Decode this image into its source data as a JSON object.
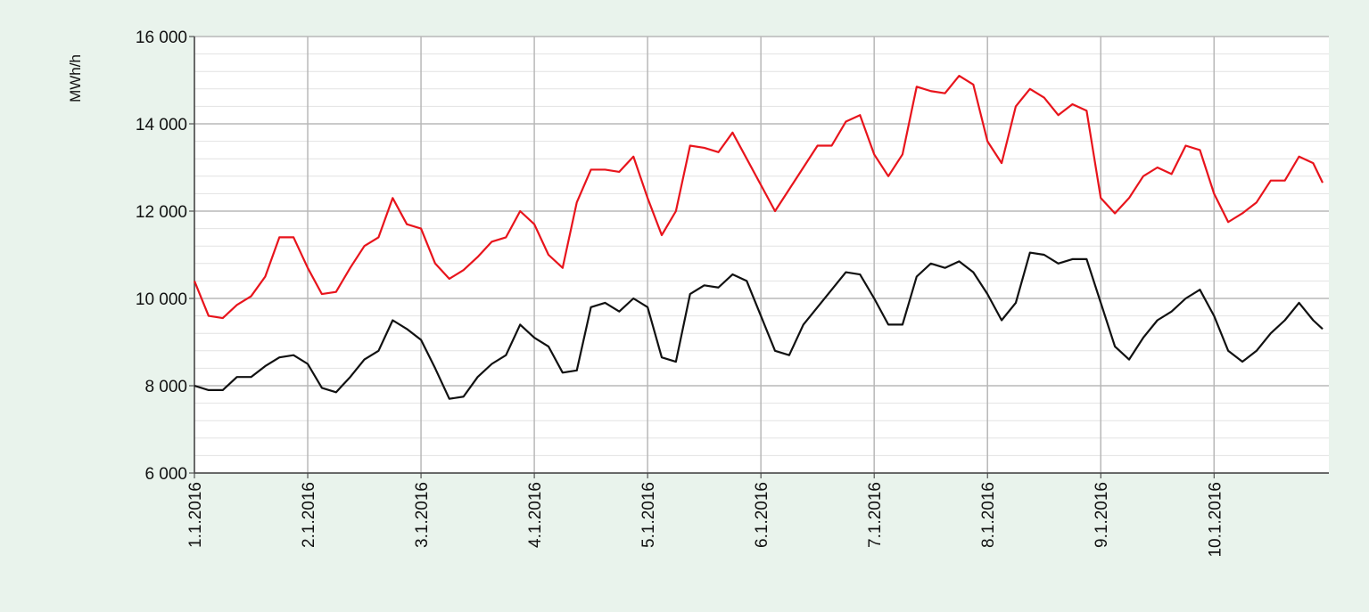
{
  "chart_data": {
    "type": "line",
    "y_label": "MWh/h",
    "x": [
      0,
      3,
      6,
      9,
      12,
      15,
      18,
      21,
      24,
      27,
      30,
      33,
      36,
      39,
      42,
      45,
      48,
      51,
      54,
      57,
      60,
      63,
      66,
      69,
      72,
      75,
      78,
      81,
      84,
      87,
      90,
      93,
      96,
      99,
      102,
      105,
      108,
      111,
      114,
      117,
      120,
      123,
      126,
      129,
      132,
      135,
      138,
      141,
      144,
      147,
      150,
      153,
      156,
      159,
      162,
      165,
      168,
      171,
      174,
      177,
      180,
      183,
      186,
      189,
      192,
      195,
      198,
      201,
      204,
      207,
      210,
      213,
      216,
      219,
      222,
      225,
      228,
      231,
      234,
      237,
      239
    ],
    "series": [
      {
        "color": "#e8141c",
        "values": [
          10400,
          9600,
          9550,
          9850,
          10050,
          10500,
          11400,
          11400,
          10700,
          10100,
          10150,
          10700,
          11200,
          11400,
          12300,
          11700,
          11600,
          10800,
          10450,
          10650,
          10950,
          11300,
          11400,
          12000,
          11700,
          11000,
          10700,
          12200,
          12950,
          12950,
          12900,
          13250,
          12300,
          11450,
          12000,
          13500,
          13450,
          13350,
          13800,
          13200,
          12600,
          12000,
          12500,
          13000,
          13500,
          13500,
          14050,
          14200,
          13300,
          12800,
          13300,
          14850,
          14750,
          14700,
          15100,
          14900,
          13600,
          13100,
          14400,
          14800,
          14600,
          14200,
          14450,
          14300,
          12300,
          11950,
          12300,
          12800,
          13000,
          12850,
          13500,
          13400,
          12400,
          11750,
          11950,
          12200,
          12700,
          12700,
          13250,
          13100,
          12650
        ]
      },
      {
        "color": "#111111",
        "values": [
          8000,
          7900,
          7900,
          8200,
          8200,
          8450,
          8650,
          8700,
          8500,
          7950,
          7850,
          8200,
          8600,
          8800,
          9500,
          9300,
          9050,
          8400,
          7700,
          7750,
          8200,
          8500,
          8700,
          9400,
          9100,
          8900,
          8300,
          8350,
          9800,
          9900,
          9700,
          10000,
          9800,
          8650,
          8550,
          10100,
          10300,
          10250,
          10550,
          10400,
          9600,
          8800,
          8700,
          9400,
          9800,
          10200,
          10600,
          10550,
          10000,
          9400,
          9400,
          10500,
          10800,
          10700,
          10850,
          10600,
          10100,
          9500,
          9900,
          11050,
          11000,
          10800,
          10900,
          10900,
          9900,
          8900,
          8600,
          9100,
          9500,
          9700,
          10000,
          10200,
          9600,
          8800,
          8550,
          8800,
          9200,
          9500,
          9900,
          9500,
          9300
        ]
      }
    ],
    "xlim": [
      0,
      239
    ],
    "xticks": [
      {
        "value": 0,
        "label": "1.1.2016"
      },
      {
        "value": 24,
        "label": "2.1.2016"
      },
      {
        "value": 48,
        "label": "3.1.2016"
      },
      {
        "value": 72,
        "label": "4.1.2016"
      },
      {
        "value": 96,
        "label": "5.1.2016"
      },
      {
        "value": 120,
        "label": "6.1.2016"
      },
      {
        "value": 144,
        "label": "7.1.2016"
      },
      {
        "value": 168,
        "label": "8.1.2016"
      },
      {
        "value": 192,
        "label": "9.1.2016"
      },
      {
        "value": 216,
        "label": "10.1.2016"
      }
    ],
    "ylim": [
      6000,
      16000
    ],
    "yticks": [
      {
        "value": 6000,
        "label": "6 000"
      },
      {
        "value": 8000,
        "label": "8 000"
      },
      {
        "value": 10000,
        "label": "10 000"
      },
      {
        "value": 12000,
        "label": "12 000"
      },
      {
        "value": 14000,
        "label": "14 000"
      },
      {
        "value": 16000,
        "label": "16 000"
      }
    ],
    "grid": true
  }
}
